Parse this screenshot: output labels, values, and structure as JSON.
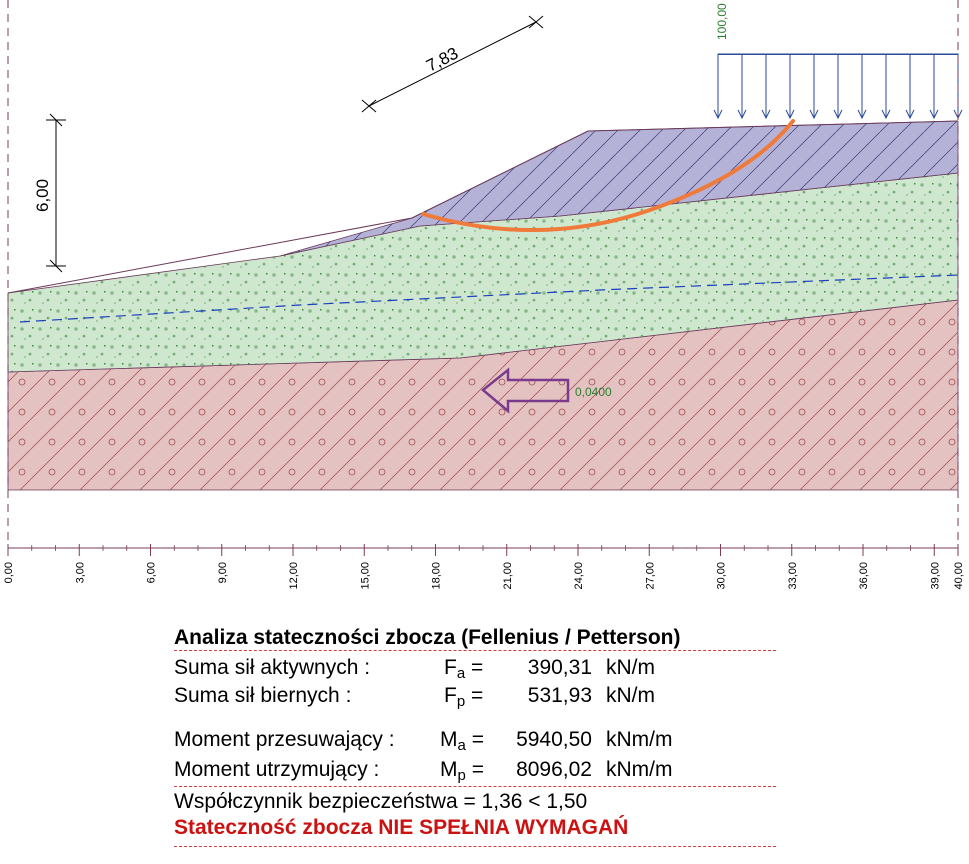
{
  "diagram": {
    "load_value": "100,00",
    "dim_slope": "7,83",
    "dim_height": "6,00",
    "seismic_value": "0,0400",
    "axis_ticks": [
      "0,00",
      "3,00",
      "6,00",
      "9,00",
      "12,00",
      "15,00",
      "18,00",
      "21,00",
      "24,00",
      "27,00",
      "30,00",
      "33,00",
      "36,00",
      "39,00",
      "40,00"
    ],
    "colors": {
      "clay_fill": "#b4b2d6",
      "sand_fill": "#cfe6cf",
      "rock_fill": "#e4c2c2",
      "slip_surface": "#f07a3a",
      "load_arrows": "#2a4a9a",
      "water_table": "#1a3fbf",
      "seismic_arrow": "#7a3b8c",
      "load_text": "#2e7d2e"
    }
  },
  "results": {
    "title": "Analiza stateczności zbocza (Fellenius / Petterson)",
    "active_forces": {
      "label": "Suma sił aktywnych :",
      "symbol": "F",
      "sub": "a",
      "eq": "=",
      "value": "390,31",
      "unit": "kN/m"
    },
    "passive_forces": {
      "label": "Suma sił biernych :",
      "symbol": "F",
      "sub": "p",
      "eq": "=",
      "value": "531,93",
      "unit": "kN/m"
    },
    "driving_moment": {
      "label": "Moment przesuwający :",
      "symbol": "M",
      "sub": "a",
      "eq": "=",
      "value": "5940,50",
      "unit": "kNm/m"
    },
    "resisting_moment": {
      "label": "Moment utrzymujący :",
      "symbol": "M",
      "sub": "p",
      "eq": "=",
      "value": "8096,02",
      "unit": "kNm/m"
    },
    "safety_factor": "Współczynnik bezpieczeństwa = 1,36 < 1,50",
    "verdict": "Stateczność zbocza NIE SPEŁNIA WYMAGAŃ"
  }
}
